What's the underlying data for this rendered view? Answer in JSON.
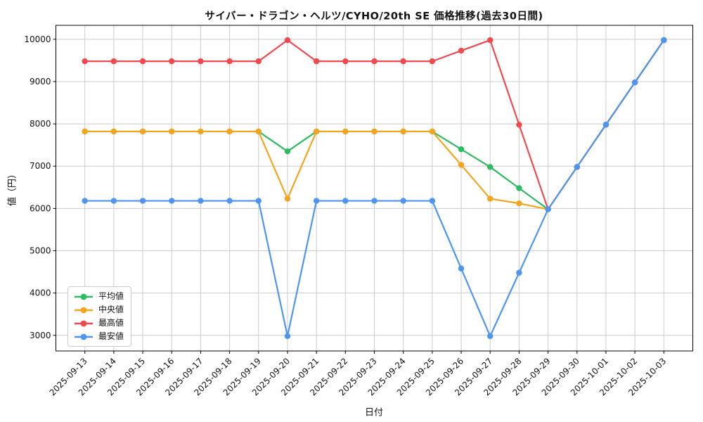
{
  "chart_data": {
    "type": "line",
    "title": "サイバー・ドラゴン・ヘルツ/CYHO/20th SE 価格推移(過去30日間)",
    "xlabel": "日付",
    "ylabel": "値（円）",
    "x": [
      "2025-09-13",
      "2025-09-14",
      "2025-09-15",
      "2025-09-16",
      "2025-09-17",
      "2025-09-18",
      "2025-09-19",
      "2025-09-20",
      "2025-09-21",
      "2025-09-22",
      "2025-09-23",
      "2025-09-24",
      "2025-09-25",
      "2025-09-26",
      "2025-09-27",
      "2025-09-28",
      "2025-09-29",
      "2025-09-30",
      "2025-10-01",
      "2025-10-02",
      "2025-10-03"
    ],
    "series": [
      {
        "name": "平均値",
        "key": "average",
        "color": "#2dbb63",
        "values": [
          7820,
          7820,
          7820,
          7820,
          7820,
          7820,
          7820,
          7350,
          7820,
          7820,
          7820,
          7820,
          7820,
          7400,
          6980,
          6480,
          5980,
          6980,
          7980,
          8980,
          9980
        ]
      },
      {
        "name": "中央値",
        "key": "median",
        "color": "#f5a41e",
        "values": [
          7820,
          7820,
          7820,
          7820,
          7820,
          7820,
          7820,
          6230,
          7820,
          7820,
          7820,
          7820,
          7820,
          7030,
          6230,
          6120,
          5980,
          6980,
          7980,
          8980,
          9980
        ]
      },
      {
        "name": "最高値",
        "key": "max",
        "color": "#f24950",
        "values": [
          9480,
          9480,
          9480,
          9480,
          9480,
          9480,
          9480,
          9980,
          9480,
          9480,
          9480,
          9480,
          9480,
          9730,
          9980,
          7980,
          5980,
          6980,
          7980,
          8980,
          9980
        ]
      },
      {
        "name": "最安値",
        "key": "min",
        "color": "#4e95f2",
        "values": [
          6180,
          6180,
          6180,
          6180,
          6180,
          6180,
          6180,
          2980,
          6180,
          6180,
          6180,
          6180,
          6180,
          4580,
          2980,
          4480,
          5980,
          6980,
          7980,
          8980,
          9980
        ]
      }
    ],
    "y_ticks": [
      3000,
      4000,
      5000,
      6000,
      7000,
      8000,
      9000,
      10000
    ],
    "ylim": [
      2630,
      10330
    ],
    "grid": true,
    "legend_position": "lower left"
  },
  "colors": {
    "grid": "#cccccc",
    "axis": "#000000",
    "background": "#ffffff",
    "tick_text": "#111111"
  }
}
